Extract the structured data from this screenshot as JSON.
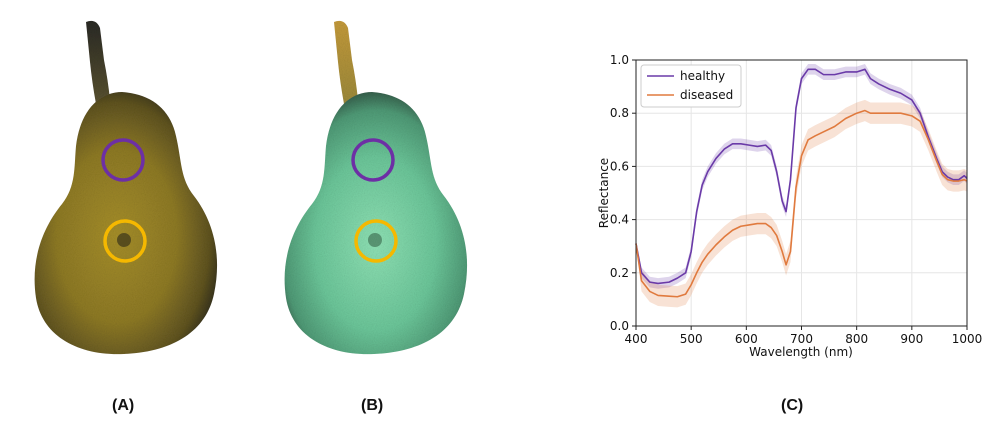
{
  "panels": {
    "a_label": "(A)",
    "b_label": "(B)",
    "c_label": "(C)"
  },
  "colors": {
    "healthy": "#6a3aa8",
    "diseased": "#e07a3e",
    "circle_healthy": "#6d2fa5",
    "circle_diseased": "#f5b800"
  },
  "chart_data": {
    "type": "line",
    "title": "",
    "xlabel": "Wavelength (nm)",
    "ylabel": "Reflectance",
    "xlim": [
      400,
      1000
    ],
    "ylim": [
      0.0,
      1.0
    ],
    "xticks": [
      400,
      500,
      600,
      700,
      800,
      900,
      1000
    ],
    "yticks": [
      0.0,
      0.2,
      0.4,
      0.6,
      0.8,
      1.0
    ],
    "grid": true,
    "legend_position": "top-left",
    "series": [
      {
        "name": "healthy",
        "x": [
          400,
          410,
          425,
          440,
          460,
          475,
          490,
          500,
          510,
          520,
          530,
          545,
          560,
          575,
          590,
          605,
          620,
          635,
          645,
          655,
          665,
          672,
          680,
          690,
          700,
          712,
          725,
          740,
          760,
          780,
          800,
          815,
          825,
          840,
          860,
          880,
          900,
          915,
          930,
          945,
          955,
          965,
          975,
          985,
          995,
          1000
        ],
        "y": [
          0.31,
          0.2,
          0.165,
          0.16,
          0.165,
          0.18,
          0.2,
          0.28,
          0.43,
          0.53,
          0.58,
          0.63,
          0.665,
          0.685,
          0.685,
          0.68,
          0.675,
          0.68,
          0.66,
          0.58,
          0.47,
          0.43,
          0.55,
          0.82,
          0.93,
          0.965,
          0.965,
          0.945,
          0.945,
          0.955,
          0.955,
          0.965,
          0.93,
          0.91,
          0.89,
          0.875,
          0.85,
          0.8,
          0.71,
          0.63,
          0.58,
          0.56,
          0.55,
          0.55,
          0.565,
          0.555
        ],
        "band": 0.02
      },
      {
        "name": "diseased",
        "x": [
          400,
          410,
          425,
          440,
          460,
          475,
          490,
          500,
          510,
          520,
          530,
          545,
          560,
          575,
          590,
          605,
          620,
          635,
          645,
          655,
          665,
          672,
          680,
          690,
          700,
          712,
          725,
          740,
          760,
          780,
          800,
          815,
          825,
          840,
          860,
          880,
          900,
          915,
          930,
          945,
          955,
          965,
          975,
          985,
          995,
          1000
        ],
        "y": [
          0.31,
          0.17,
          0.13,
          0.115,
          0.112,
          0.11,
          0.12,
          0.155,
          0.2,
          0.24,
          0.27,
          0.305,
          0.335,
          0.36,
          0.375,
          0.38,
          0.385,
          0.385,
          0.37,
          0.34,
          0.28,
          0.23,
          0.28,
          0.52,
          0.64,
          0.7,
          0.715,
          0.73,
          0.75,
          0.78,
          0.8,
          0.81,
          0.8,
          0.8,
          0.8,
          0.8,
          0.79,
          0.77,
          0.7,
          0.62,
          0.57,
          0.55,
          0.545,
          0.545,
          0.55,
          0.545
        ],
        "band": 0.04
      }
    ]
  }
}
